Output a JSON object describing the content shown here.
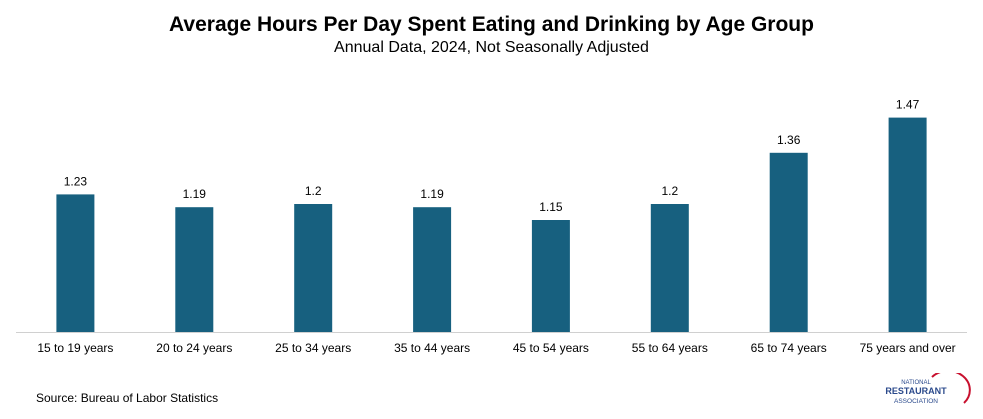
{
  "chart_data": {
    "type": "bar",
    "title": "Average Hours Per Day Spent Eating and Drinking by Age Group",
    "subtitle": "Annual Data, 2024, Not Seasonally Adjusted",
    "categories": [
      "15 to 19 years",
      "20 to 24 years",
      "25 to 34 years",
      "35 to 44 years",
      "45 to 54 years",
      "55 to 64 years",
      "65 to 74 years",
      "75 years and over"
    ],
    "values": [
      1.23,
      1.19,
      1.2,
      1.19,
      1.15,
      1.2,
      1.36,
      1.47
    ],
    "value_labels": [
      "1.23",
      "1.19",
      "1.2",
      "1.19",
      "1.15",
      "1.2",
      "1.36",
      "1.47"
    ],
    "xlabel": "",
    "ylabel": "",
    "ylim": [
      0.8,
      1.5
    ],
    "grid": false,
    "bar_color": "#17607f"
  },
  "source": "Source: Bureau of Labor Statistics",
  "logo": {
    "line1": "NATIONAL",
    "line2": "RESTAURANT",
    "line3": "ASSOCIATION",
    "color_blue": "#2b4a8c",
    "color_red": "#c8102e"
  }
}
